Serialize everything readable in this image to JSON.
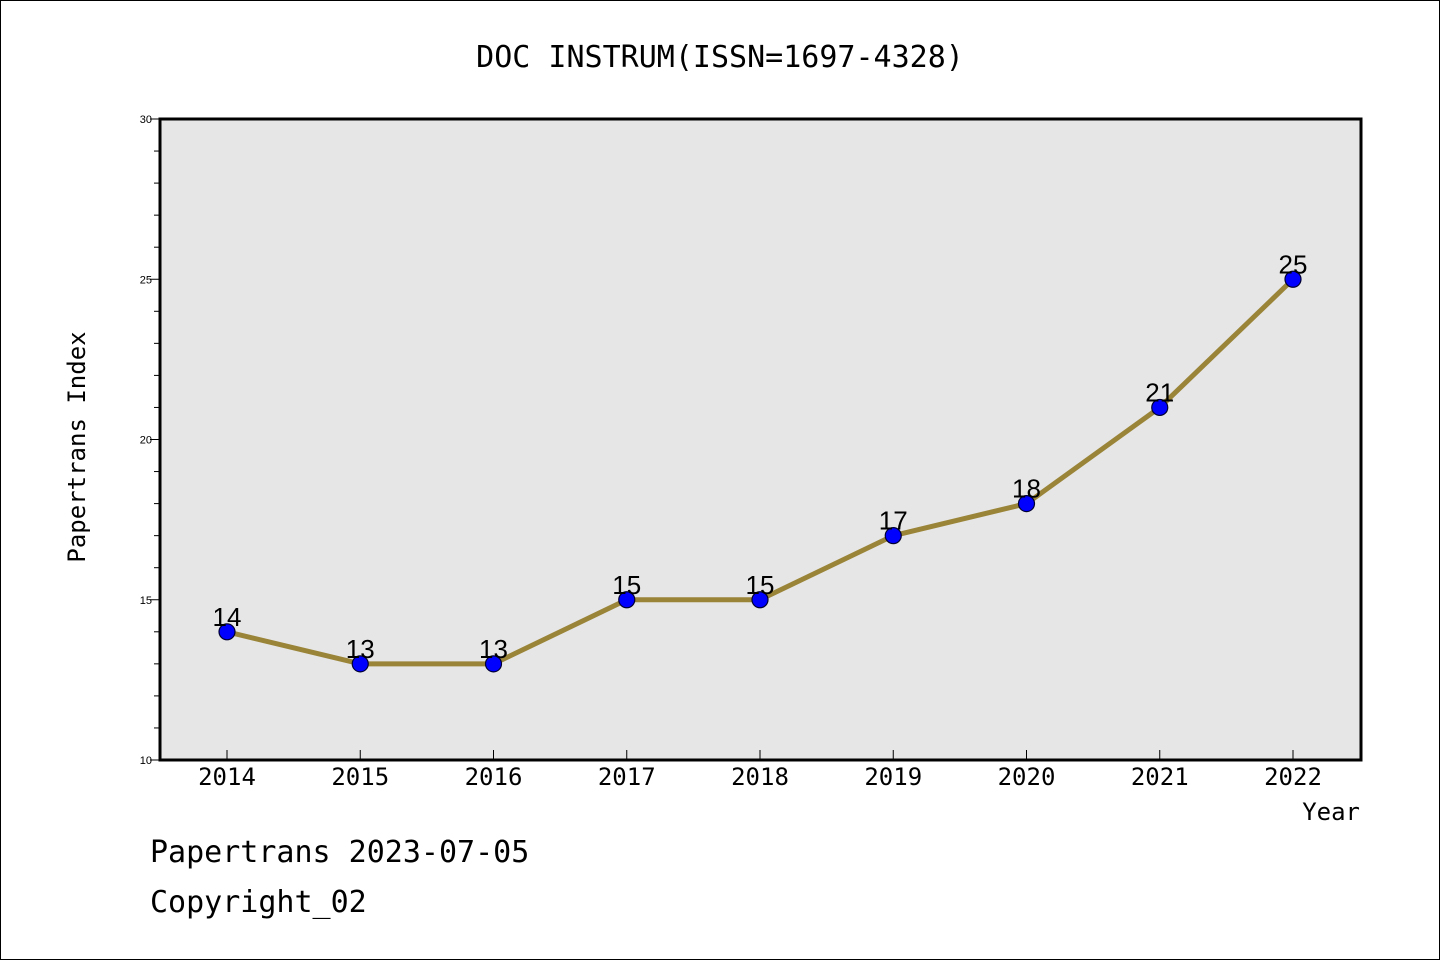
{
  "chart_data": {
    "type": "line",
    "title": "DOC INSTRUM(ISSN=1697-4328)",
    "xlabel": "Year",
    "ylabel": "Papertrans Index",
    "categories": [
      "2014",
      "2015",
      "2016",
      "2017",
      "2018",
      "2019",
      "2020",
      "2021",
      "2022"
    ],
    "series": [
      {
        "values": [
          14,
          13,
          13,
          15,
          15,
          17,
          18,
          21,
          25
        ]
      }
    ],
    "ylim": [
      10,
      30
    ],
    "yticks": [
      "10",
      "15",
      "20",
      "25",
      "30"
    ],
    "grid": false,
    "colors": {
      "line": "#9a8438",
      "marker": "#0000ff",
      "plot_bg": "#e6e6e6"
    }
  },
  "footer": {
    "date_line": "Papertrans 2023-07-05",
    "copyright": "Copyright_02"
  }
}
